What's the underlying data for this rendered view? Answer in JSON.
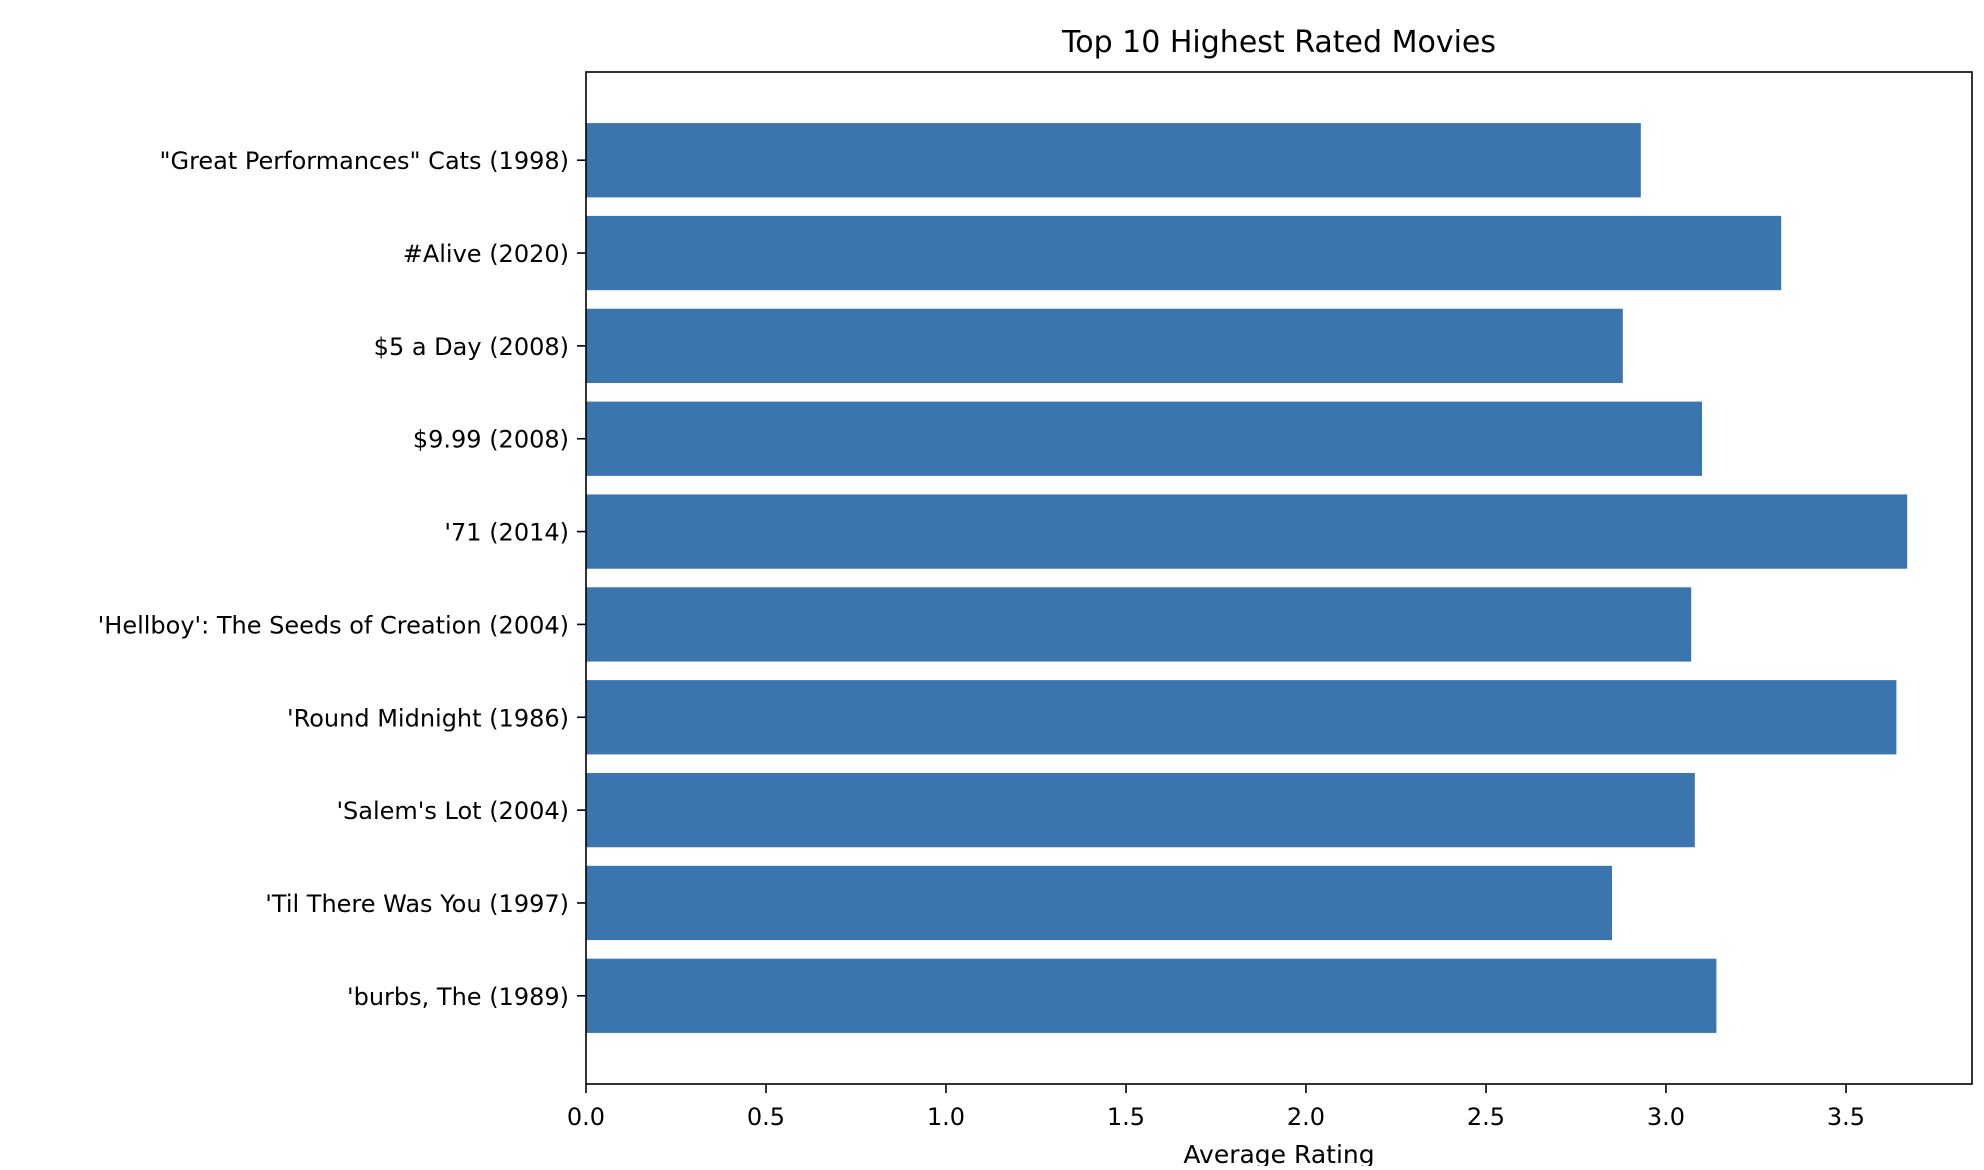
{
  "chart_data": {
    "type": "bar",
    "orientation": "horizontal",
    "title": "Top 10 Highest Rated Movies",
    "xlabel": "Average Rating",
    "ylabel": "",
    "xlim": [
      0,
      3.85
    ],
    "x_ticks": [
      "0.0",
      "0.5",
      "1.0",
      "1.5",
      "2.0",
      "2.5",
      "3.0",
      "3.5"
    ],
    "grid": false,
    "legend": "none",
    "bar_color": "#3b75af",
    "categories": [
      "\"Great Performances\" Cats (1998)",
      "#Alive (2020)",
      "$5 a Day (2008)",
      "$9.99 (2008)",
      "'71 (2014)",
      "'Hellboy': The Seeds of Creation (2004)",
      "'Round Midnight (1986)",
      "'Salem's Lot (2004)",
      "'Til There Was You (1997)",
      "'burbs, The (1989)"
    ],
    "values": [
      2.93,
      3.32,
      2.88,
      3.1,
      3.67,
      3.07,
      3.64,
      3.08,
      2.85,
      3.14
    ]
  }
}
